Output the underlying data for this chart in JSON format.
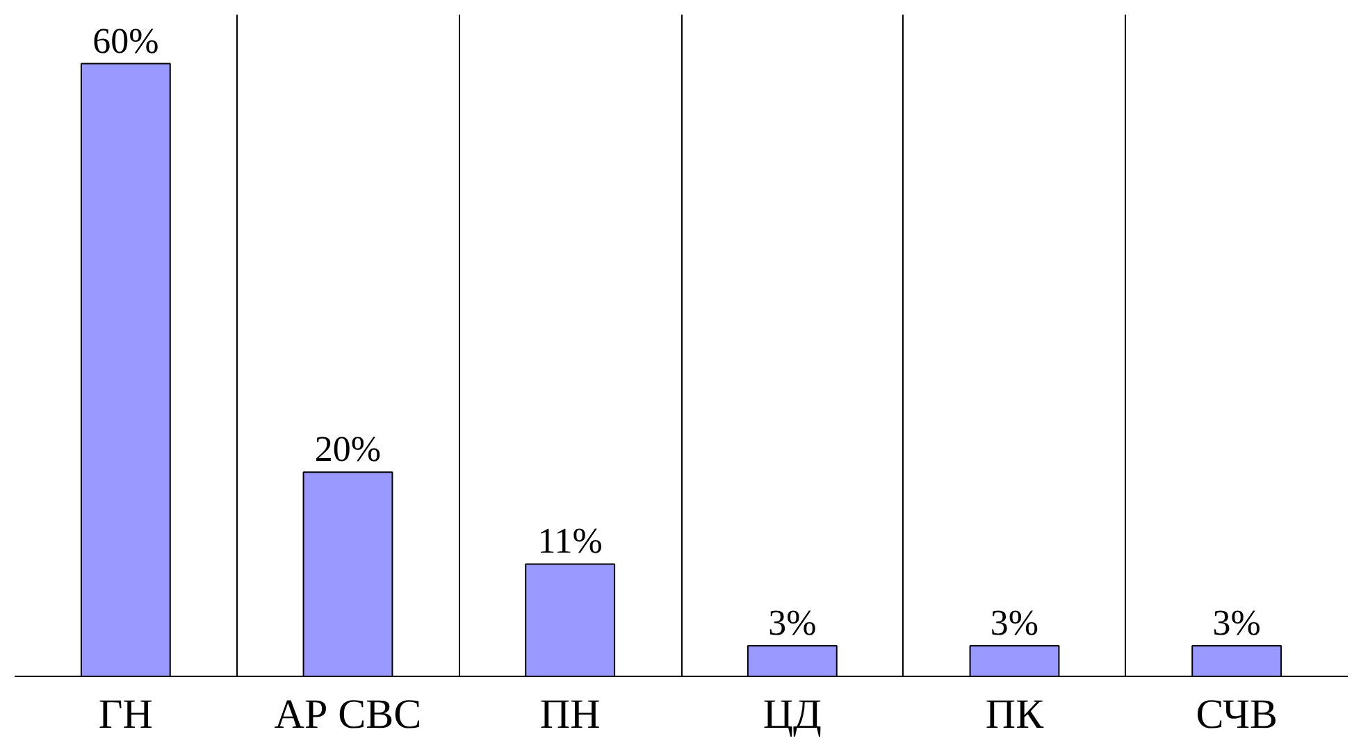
{
  "chart_data": {
    "type": "bar",
    "categories": [
      "ГН",
      "АР СВС",
      "ПН",
      "ЦД",
      "ПК",
      "СЧВ"
    ],
    "values": [
      60,
      20,
      11,
      3,
      3,
      3
    ],
    "value_labels": [
      "60%",
      "20%",
      "11%",
      "3%",
      "3%",
      "3%"
    ],
    "color": "#9999ff",
    "grid": "x"
  }
}
